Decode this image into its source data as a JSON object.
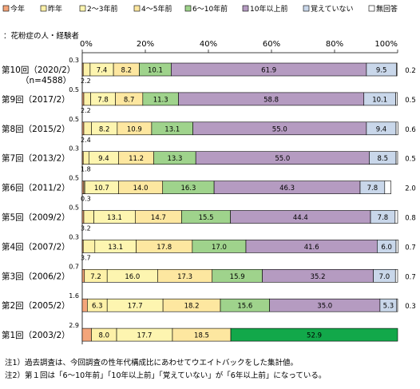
{
  "legend": [
    {
      "label": "今年",
      "color": "#f4a57a"
    },
    {
      "label": "昨年",
      "color": "#fdf1a8"
    },
    {
      "label": "2～3年前",
      "color": "#fdf5b0"
    },
    {
      "label": "4～5年前",
      "color": "#fde7a0"
    },
    {
      "label": "6～10年前",
      "color": "#9fd38c"
    },
    {
      "label": "10年以上前",
      "color": "#b59bc1"
    },
    {
      "label": "覚えていない",
      "color": "#c9d7ea"
    },
    {
      "label": "無回答",
      "color": "#ffffff"
    }
  ],
  "subtitle": "：花粉症の人・経験者",
  "notes": [
    "注1）過去調査は、今回調査の性年代構成比にあわせてウエイトバックをした集計値。",
    "注2）第１回は「6～10年前」「10年以上前」「覚えていない」が「6年以上前」になっている。"
  ],
  "chart_data": {
    "type": "bar",
    "orientation": "horizontal",
    "stacked": true,
    "percent": true,
    "xlim": [
      0,
      100
    ],
    "x_ticks": [
      "0%",
      "20%",
      "40%",
      "60%",
      "80%",
      "100%"
    ],
    "categories": [
      {
        "label": "第10回（2020/2）",
        "sublabel": "（n=4588）"
      },
      {
        "label": "第9回（2017/2）"
      },
      {
        "label": "第8回（2015/2）"
      },
      {
        "label": "第7回（2013/2）"
      },
      {
        "label": "第6回（2011/2）"
      },
      {
        "label": "第5回（2009/2）"
      },
      {
        "label": "第4回（2007/2）"
      },
      {
        "label": "第3回（2006/2）"
      },
      {
        "label": "第2回（2005/2）"
      },
      {
        "label": "第1回（2003/2）"
      }
    ],
    "series": [
      {
        "name": "今年",
        "color": "#f4a57a",
        "values": [
          0.3,
          0.5,
          0.5,
          0.3,
          0.5,
          0.5,
          0.3,
          0.7,
          1.6,
          2.9
        ]
      },
      {
        "name": "昨年",
        "color": "#fdf1a8",
        "values": [
          2.2,
          2.2,
          2.4,
          1.8,
          0.3,
          3.2,
          3.7,
          7.2,
          6.3,
          8.0
        ]
      },
      {
        "name": "2～3年前",
        "color": "#fdf5b0",
        "values": [
          7.4,
          7.8,
          8.2,
          9.4,
          10.7,
          13.1,
          13.1,
          16.0,
          17.7,
          17.7
        ]
      },
      {
        "name": "4～5年前",
        "color": "#fde7a0",
        "values": [
          8.2,
          8.7,
          10.9,
          11.2,
          14.0,
          14.7,
          17.8,
          17.3,
          18.2,
          18.5
        ]
      },
      {
        "name": "6～10年前",
        "color": "#9fd38c",
        "values": [
          10.1,
          11.3,
          13.1,
          13.3,
          16.3,
          15.5,
          17.0,
          15.9,
          15.6,
          null
        ]
      },
      {
        "name": "10年以上前",
        "color": "#b59bc1",
        "values": [
          61.9,
          58.8,
          55.0,
          55.0,
          46.3,
          44.4,
          41.6,
          35.2,
          35.0,
          null
        ]
      },
      {
        "name": "覚えていない",
        "color": "#c9d7ea",
        "values": [
          9.5,
          10.1,
          9.4,
          8.5,
          7.8,
          7.8,
          6.0,
          7.0,
          5.3,
          null
        ]
      },
      {
        "name": "無回答",
        "color": "#ffffff",
        "values": [
          0.2,
          0.5,
          0.6,
          0.5,
          2.0,
          0.8,
          0.7,
          0.7,
          0.3,
          null
        ]
      }
    ],
    "special_segments": [
      {
        "category_index": 9,
        "name": "6年以上前",
        "color": "#12a84a",
        "value": 52.9
      }
    ],
    "small_label_positions": {
      "今年": "above-left",
      "昨年": "below-left",
      "無回答": "right"
    }
  }
}
